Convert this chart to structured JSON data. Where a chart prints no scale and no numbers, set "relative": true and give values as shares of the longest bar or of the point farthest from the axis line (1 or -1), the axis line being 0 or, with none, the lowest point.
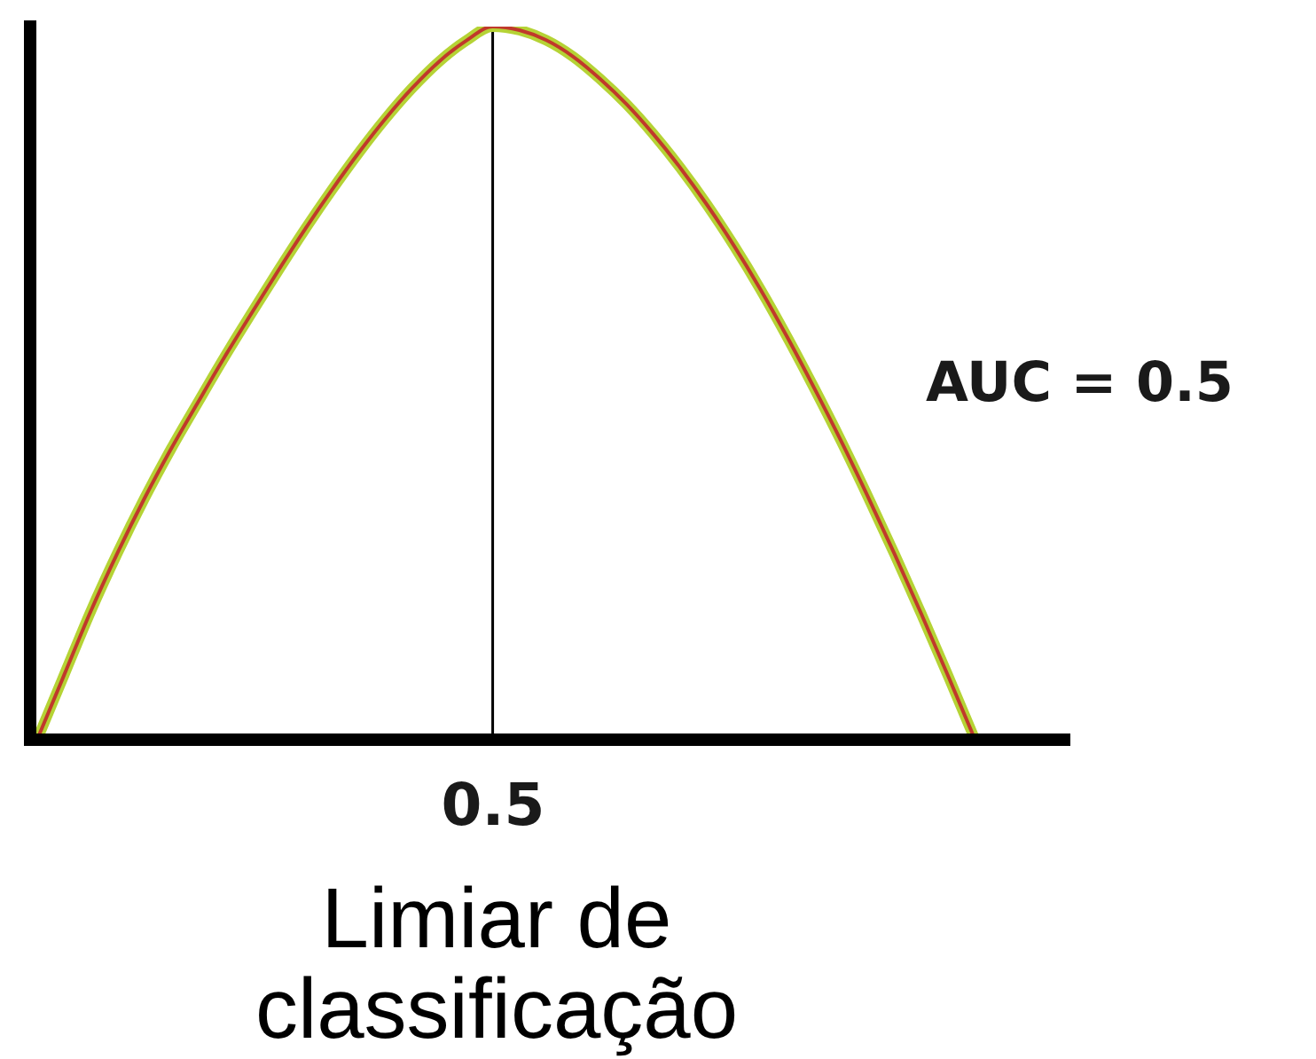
{
  "chart_data": {
    "type": "line",
    "relative": true,
    "categories": [
      null,
      null,
      null,
      null,
      null,
      null,
      null,
      null,
      null,
      null,
      null,
      null,
      null,
      null,
      null,
      null,
      null,
      null,
      null,
      null,
      null,
      null,
      null,
      null,
      null,
      null,
      null,
      null,
      null,
      null,
      null,
      null,
      null,
      null,
      null,
      null
    ],
    "series": [
      {
        "color": "#b5d335",
        "values": [
          0,
          0.09,
          0.18,
          0.262,
          0.338,
          0.408,
          0.473,
          0.537,
          0.598,
          0.658,
          0.716,
          0.771,
          0.823,
          0.871,
          0.914,
          0.951,
          0.98,
          1,
          0.995,
          0.981,
          0.958,
          0.927,
          0.891,
          0.849,
          0.802,
          0.75,
          0.693,
          0.631,
          0.564,
          0.493,
          0.419,
          0.341,
          0.26,
          0.176,
          0.089,
          0
        ]
      },
      {
        "color": "#c0392b",
        "values": [
          0,
          0.09,
          0.18,
          0.262,
          0.338,
          0.408,
          0.473,
          0.537,
          0.598,
          0.658,
          0.716,
          0.771,
          0.823,
          0.871,
          0.914,
          0.951,
          0.98,
          1,
          0.995,
          0.981,
          0.958,
          0.927,
          0.891,
          0.849,
          0.802,
          0.75,
          0.693,
          0.631,
          0.564,
          0.493,
          0.419,
          0.341,
          0.26,
          0.176,
          0.089,
          0
        ]
      }
    ],
    "xlabel": "Limiar de classificação",
    "annotations": [
      "AUC = 0.5",
      "0.5"
    ],
    "marker": "none"
  }
}
